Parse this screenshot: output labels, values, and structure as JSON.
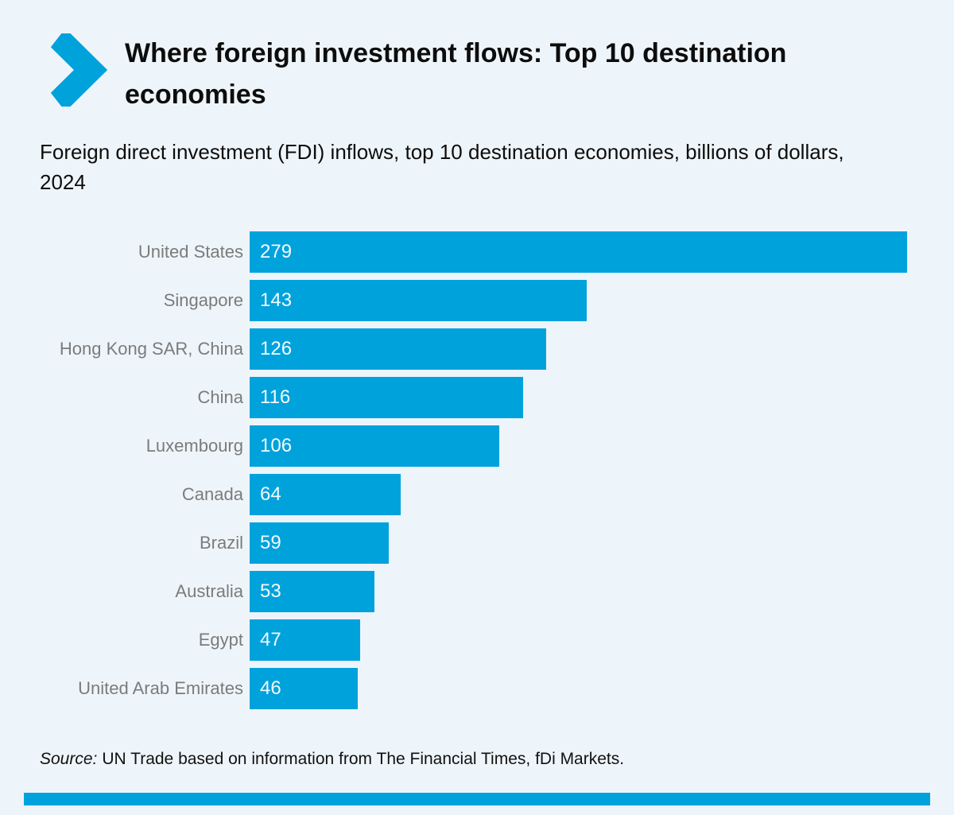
{
  "header": {
    "title": "Where foreign investment flows: Top 10 destination economies"
  },
  "subtitle": "Foreign direct investment (FDI) inflows, top 10 destination economies, billions of dollars, 2024",
  "chart_data": {
    "type": "bar",
    "orientation": "horizontal",
    "title": "Where foreign investment flows: Top 10 destination economies",
    "subtitle": "Foreign direct investment (FDI) inflows, top 10 destination economies, billions of dollars, 2024",
    "categories": [
      "United States",
      "Singapore",
      "Hong Kong SAR, China",
      "China",
      "Luxembourg",
      "Canada",
      "Brazil",
      "Australia",
      "Egypt",
      "United Arab Emirates"
    ],
    "values": [
      279,
      143,
      126,
      116,
      106,
      64,
      59,
      53,
      47,
      46
    ],
    "xlabel": "",
    "ylabel": "",
    "xlim": [
      0,
      279
    ],
    "grid": false,
    "legend": false,
    "bar_color": "#00a2dc",
    "value_labels_position": "inside-left"
  },
  "source": {
    "prefix": "Source:",
    "text": "UN Trade based on information from The Financial Times, fDi Markets."
  },
  "colors": {
    "accent": "#00a2dc",
    "background": "#eef5fa",
    "label_gray": "#7b7b7b",
    "value_text": "#f4fbfe"
  },
  "icons": {
    "chevron": "chevron-right-icon"
  }
}
